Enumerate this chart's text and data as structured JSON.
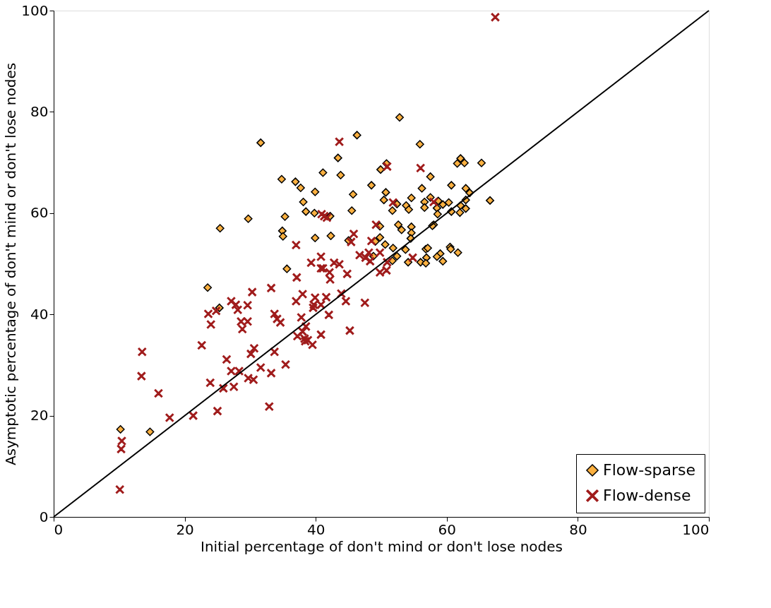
{
  "chart_data": {
    "type": "scatter",
    "xlabel": "Initial percentage of don't mind or don't lose nodes",
    "ylabel": "Asymptotic percentage of don't mind or don't lose nodes",
    "xlim": [
      0,
      100
    ],
    "ylim": [
      0,
      100
    ],
    "xticks": [
      0,
      20,
      40,
      60,
      80,
      100
    ],
    "yticks": [
      0,
      20,
      40,
      60,
      80,
      100
    ],
    "grid": false,
    "legend": "bottom right",
    "series": [
      {
        "name": "Flow-sparse",
        "color": "#fbb040",
        "marker": "diamond",
        "x": [
          10.2,
          14.7,
          23.5,
          25.3,
          52.8,
          46.3,
          55.9,
          43.4,
          41.1,
          43.8,
          50.8,
          49.9,
          62.1,
          61.6,
          62.7,
          65.3,
          57.5,
          34.8,
          36.9,
          37.7,
          39.9,
          48.5,
          45.7,
          50.7,
          56.2,
          60.7,
          62.9,
          63.5,
          38.1,
          50.4,
          54.6,
          52.4,
          56.6,
          57.5,
          56.6,
          51.7,
          53.8,
          54.2,
          58.7,
          59.4,
          60.3,
          58.5,
          58.6,
          60.7,
          62.1,
          62.9,
          62.0,
          62.9,
          66.6,
          38.5,
          39.8,
          42.2,
          45.5,
          35.3,
          34.9,
          35.0,
          39.9,
          42.3,
          45.0,
          49.8,
          52.6,
          53.1,
          54.6,
          54.6,
          54.5,
          49.8,
          49.1,
          50.6,
          51.8,
          53.7,
          58.0,
          57.8,
          56.8,
          57.1,
          60.5,
          60.6,
          61.7,
          59.0,
          58.5,
          59.4,
          56.9,
          56.0,
          56.8,
          54.1,
          52.4,
          51.7,
          48.8,
          35.6,
          31.6,
          29.7,
          25.4
        ],
        "values": [
          17.3,
          16.8,
          45.3,
          41.3,
          78.9,
          75.4,
          73.6,
          70.9,
          68.0,
          67.5,
          69.8,
          68.6,
          70.8,
          69.8,
          69.9,
          69.9,
          67.2,
          66.7,
          66.2,
          65.0,
          64.2,
          65.5,
          63.7,
          64.1,
          64.9,
          65.5,
          64.9,
          64.0,
          62.2,
          62.6,
          63.0,
          61.8,
          62.2,
          63.1,
          61.1,
          60.5,
          61.5,
          60.7,
          62.4,
          61.7,
          62.1,
          61.0,
          59.8,
          60.3,
          61.5,
          62.6,
          60.1,
          60.9,
          62.5,
          60.3,
          60.0,
          59.4,
          60.5,
          59.3,
          56.5,
          55.4,
          55.1,
          55.5,
          54.6,
          57.4,
          57.7,
          56.7,
          57.3,
          56.1,
          55.0,
          55.2,
          54.4,
          53.8,
          53.1,
          52.8,
          57.7,
          57.5,
          52.9,
          53.1,
          53.3,
          52.9,
          52.2,
          52.0,
          51.4,
          50.5,
          51.2,
          50.3,
          50.1,
          50.3,
          51.5,
          50.6,
          51.5,
          49.0,
          73.9,
          58.9,
          57.0
        ]
      },
      {
        "name": "Flow-dense",
        "color": "#a01c1c",
        "marker": "cross",
        "x": [
          10.4,
          10.3,
          10.1,
          13.5,
          13.4,
          16.0,
          17.7,
          21.3,
          22.6,
          25.0,
          23.9,
          25.9,
          27.5,
          26.4,
          27.1,
          28.3,
          29.7,
          30.5,
          31.6,
          33.2,
          32.9,
          30.1,
          30.6,
          33.7,
          35.4,
          23.6,
          24.0,
          24.8,
          27.1,
          27.8,
          28.1,
          29.6,
          28.6,
          28.8,
          29.6,
          30.3,
          33.2,
          33.7,
          34.1,
          34.6,
          37.0,
          39.3,
          40.8,
          40.8,
          41.1,
          42.1,
          42.2,
          42.8,
          43.6,
          44.8,
          37.1,
          38.0,
          37.0,
          39.9,
          41.6,
          39.7,
          39.6,
          40.8,
          43.9,
          44.6,
          47.5,
          37.8,
          42.0,
          38.5,
          38.0,
          37.2,
          38.3,
          38.8,
          40.8,
          45.2,
          39.5,
          38.4,
          45.8,
          45.4,
          46.7,
          47.6,
          48.1,
          48.3,
          49.2,
          48.5,
          49.8,
          49.8,
          50.8,
          50.9,
          54.8,
          51.8,
          58.0,
          40.9,
          41.3,
          41.7,
          43.6,
          56.0,
          50.9,
          67.4
        ],
        "values": [
          15.0,
          13.4,
          5.4,
          32.6,
          27.8,
          24.4,
          19.6,
          20.0,
          33.9,
          20.9,
          26.5,
          25.4,
          25.7,
          31.1,
          28.8,
          28.8,
          27.4,
          27.1,
          29.5,
          28.4,
          21.8,
          32.2,
          33.3,
          32.6,
          30.1,
          40.1,
          38.0,
          40.7,
          42.6,
          41.9,
          40.9,
          41.8,
          38.6,
          37.1,
          38.6,
          44.4,
          45.2,
          40.1,
          39.1,
          38.4,
          53.7,
          50.2,
          51.4,
          49.1,
          49.1,
          48.3,
          46.9,
          50.2,
          49.9,
          48.0,
          47.3,
          44.0,
          42.6,
          43.3,
          43.4,
          41.9,
          41.3,
          41.9,
          44.1,
          42.6,
          42.3,
          39.4,
          39.9,
          37.6,
          36.6,
          35.7,
          35.2,
          34.9,
          36.0,
          36.8,
          34.0,
          34.7,
          55.9,
          54.3,
          51.7,
          51.2,
          52.2,
          50.5,
          57.7,
          54.5,
          52.2,
          48.3,
          48.7,
          50.3,
          51.2,
          62.1,
          62.2,
          59.8,
          59.4,
          59.1,
          74.1,
          68.9,
          69.2,
          98.7
        ]
      },
      {
        "type": "line",
        "color": "#000000",
        "x": [
          0,
          100
        ],
        "values": [
          0,
          100
        ]
      }
    ]
  }
}
